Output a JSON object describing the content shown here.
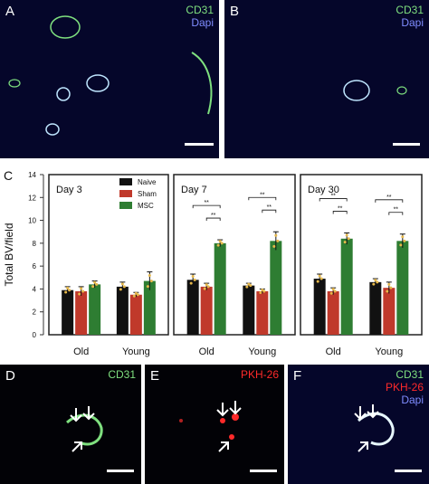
{
  "panels": {
    "A": {
      "letter": "A",
      "channels": [
        "CD31",
        "Dapi"
      ]
    },
    "B": {
      "letter": "B",
      "channels": [
        "CD31",
        "Dapi"
      ]
    },
    "C": {
      "letter": "C"
    },
    "D": {
      "letter": "D",
      "channels": [
        "CD31"
      ]
    },
    "E": {
      "letter": "E",
      "channels": [
        "PKH-26"
      ]
    },
    "F": {
      "letter": "F",
      "channels": [
        "CD31",
        "PKH-26",
        "Dapi"
      ]
    }
  },
  "colors": {
    "cd31": "#7fe07f",
    "dapi": "#7f8cff",
    "pkh26": "#ff2a2a",
    "naive": "#111111",
    "sham": "#c0392b",
    "msc": "#2e7d32"
  },
  "chart_data": {
    "type": "bar",
    "ylabel": "Total BV/field",
    "ylim": [
      0,
      14
    ],
    "yticks": [
      0,
      2,
      4,
      6,
      8,
      10,
      12,
      14
    ],
    "legend": [
      "Naive",
      "Sham",
      "MSC"
    ],
    "legend_position": "top-left of first subplot",
    "groups": [
      "Old",
      "Young"
    ],
    "significance_label": "**",
    "subplots": [
      {
        "title": "Day 3",
        "series": [
          {
            "name": "Naive",
            "values": [
              3.9,
              4.2
            ],
            "errors": [
              0.3,
              0.4
            ]
          },
          {
            "name": "Sham",
            "values": [
              3.8,
              3.5
            ],
            "errors": [
              0.4,
              0.2
            ]
          },
          {
            "name": "MSC",
            "values": [
              4.4,
              4.7
            ],
            "errors": [
              0.3,
              0.8
            ]
          }
        ]
      },
      {
        "title": "Day 7",
        "series": [
          {
            "name": "Naive",
            "values": [
              4.8,
              4.3
            ],
            "errors": [
              0.5,
              0.2
            ]
          },
          {
            "name": "Sham",
            "values": [
              4.2,
              3.8
            ],
            "errors": [
              0.3,
              0.2
            ]
          },
          {
            "name": "MSC",
            "values": [
              8.0,
              8.2
            ],
            "errors": [
              0.3,
              0.8
            ]
          }
        ]
      },
      {
        "title": "Day 30",
        "series": [
          {
            "name": "Naive",
            "values": [
              4.9,
              4.6
            ],
            "errors": [
              0.4,
              0.3
            ]
          },
          {
            "name": "Sham",
            "values": [
              3.8,
              4.1
            ],
            "errors": [
              0.3,
              0.5
            ]
          },
          {
            "name": "MSC",
            "values": [
              8.4,
              8.2
            ],
            "errors": [
              0.5,
              0.6
            ]
          }
        ]
      }
    ]
  }
}
